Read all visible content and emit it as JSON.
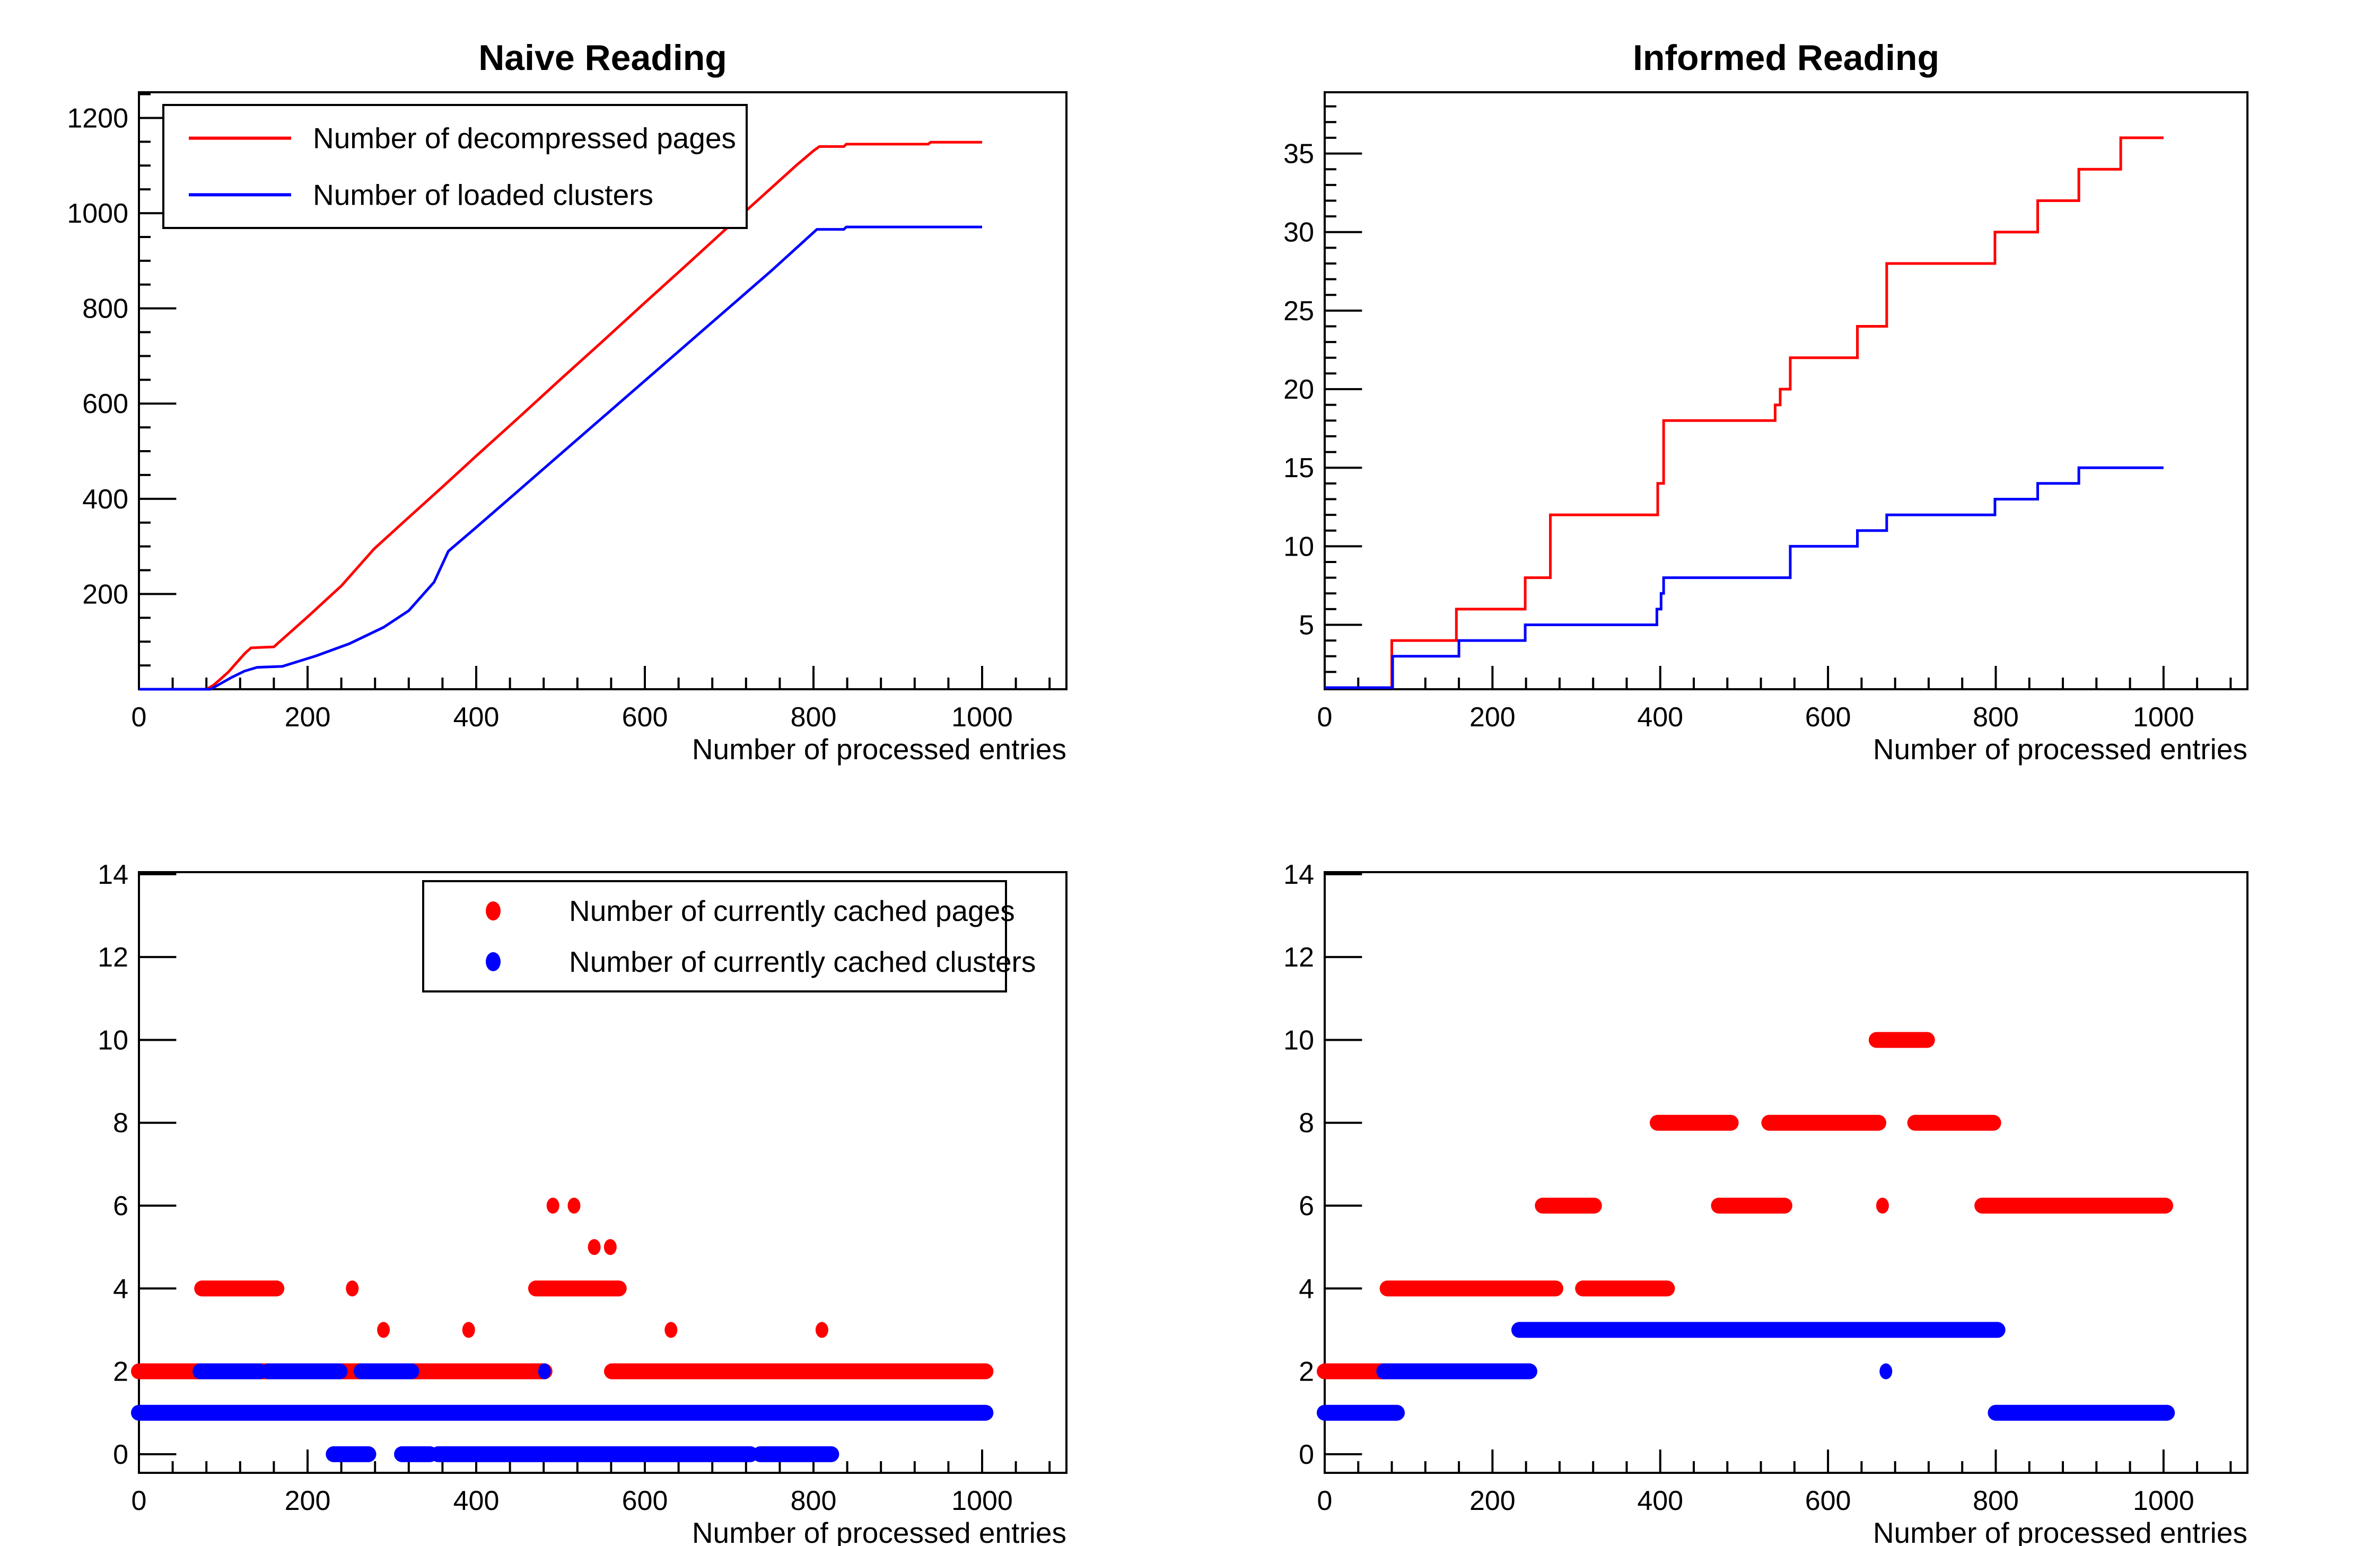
{
  "colors": {
    "red": "#ff0000",
    "blue": "#0000ff",
    "frame": "#000000",
    "background": "#ffffff"
  },
  "chart_data": {
    "type": "multi-panel",
    "panels": [
      {
        "id": "naive_cum",
        "title": "Naive Reading",
        "xlabel": "Number of processed entries",
        "xlim": [
          0,
          1100
        ],
        "ylim": [
          0,
          1254
        ],
        "grid": false,
        "xticks": {
          "major": 200,
          "minor": 40,
          "labels": [
            "0",
            "200",
            "400",
            "600",
            "800",
            "1000"
          ],
          "label_values": [
            0,
            200,
            400,
            600,
            800,
            1000
          ]
        },
        "yticks": {
          "major": 200,
          "minor": 50,
          "labels": [
            "200",
            "400",
            "600",
            "800",
            "1000",
            "1200"
          ],
          "label_values": [
            200,
            400,
            600,
            800,
            1000,
            1200
          ]
        },
        "legend": {
          "marker": "line",
          "entries": [
            {
              "label": "Number of decompressed pages",
              "color": "#ff0000"
            },
            {
              "label": "Number of loaded clusters",
              "color": "#0000ff"
            }
          ]
        },
        "series": [
          {
            "name": "decompressed-pages",
            "color": "#ff0000",
            "type": "line",
            "points": [
              [
                0,
                0
              ],
              [
                80,
                0
              ],
              [
                88,
                8
              ],
              [
                96,
                20
              ],
              [
                106,
                36
              ],
              [
                116,
                56
              ],
              [
                126,
                76
              ],
              [
                133,
                87
              ],
              [
                160,
                89
              ],
              [
                200,
                152
              ],
              [
                240,
                217
              ],
              [
                279,
                295
              ],
              [
                320,
                361
              ],
              [
                360,
                425
              ],
              [
                400,
                490
              ],
              [
                450,
                570
              ],
              [
                500,
                651
              ],
              [
                550,
                731
              ],
              [
                600,
                812
              ],
              [
                650,
                892
              ],
              [
                700,
                973
              ],
              [
                750,
                1053
              ],
              [
                780,
                1101
              ],
              [
                800,
                1131
              ],
              [
                807,
                1140
              ],
              [
                836,
                1140
              ],
              [
                839,
                1145
              ],
              [
                936,
                1145
              ],
              [
                939,
                1149
              ],
              [
                1000,
                1149
              ]
            ]
          },
          {
            "name": "loaded-clusters",
            "color": "#0000ff",
            "type": "line",
            "points": [
              [
                0,
                0
              ],
              [
                85,
                0
              ],
              [
                95,
                10
              ],
              [
                110,
                25
              ],
              [
                125,
                38
              ],
              [
                140,
                46
              ],
              [
                170,
                48
              ],
              [
                210,
                70
              ],
              [
                250,
                96
              ],
              [
                290,
                130
              ],
              [
                320,
                165
              ],
              [
                350,
                225
              ],
              [
                367,
                290
              ],
              [
                400,
                340
              ],
              [
                450,
                417
              ],
              [
                500,
                494
              ],
              [
                550,
                571
              ],
              [
                600,
                648
              ],
              [
                650,
                725
              ],
              [
                700,
                802
              ],
              [
                750,
                879
              ],
              [
                788,
                940
              ],
              [
                804,
                966
              ],
              [
                836,
                966
              ],
              [
                839,
                971
              ],
              [
                1000,
                971
              ]
            ]
          }
        ]
      },
      {
        "id": "informed_cum",
        "title": "Informed Reading",
        "xlabel": "Number of processed entries",
        "xlim": [
          0,
          1100
        ],
        "ylim": [
          0.9,
          38.9
        ],
        "grid": false,
        "xticks": {
          "major": 200,
          "minor": 40,
          "labels": [
            "0",
            "200",
            "400",
            "600",
            "800",
            "1000"
          ],
          "label_values": [
            0,
            200,
            400,
            600,
            800,
            1000
          ]
        },
        "yticks": {
          "major": 5,
          "minor": 1,
          "labels": [
            "5",
            "10",
            "15",
            "20",
            "25",
            "30",
            "35"
          ],
          "label_values": [
            5,
            10,
            15,
            20,
            25,
            30,
            35
          ]
        },
        "legend": null,
        "series": [
          {
            "name": "decompressed-pages",
            "color": "#ff0000",
            "type": "line",
            "points": [
              [
                0,
                1
              ],
              [
                80,
                1
              ],
              [
                80,
                4
              ],
              [
                157,
                4
              ],
              [
                157,
                6
              ],
              [
                239,
                6
              ],
              [
                239,
                8
              ],
              [
                269,
                8
              ],
              [
                269,
                12
              ],
              [
                397,
                12
              ],
              [
                397,
                14
              ],
              [
                404,
                14
              ],
              [
                404,
                18
              ],
              [
                537,
                18
              ],
              [
                537,
                19
              ],
              [
                543,
                19
              ],
              [
                543,
                20
              ],
              [
                555,
                20
              ],
              [
                555,
                22
              ],
              [
                635,
                22
              ],
              [
                635,
                24
              ],
              [
                670,
                24
              ],
              [
                670,
                28
              ],
              [
                799,
                28
              ],
              [
                799,
                30
              ],
              [
                850,
                30
              ],
              [
                850,
                32
              ],
              [
                899,
                32
              ],
              [
                899,
                34
              ],
              [
                949,
                34
              ],
              [
                949,
                36
              ],
              [
                1000,
                36
              ]
            ]
          },
          {
            "name": "loaded-clusters",
            "color": "#0000ff",
            "type": "line",
            "points": [
              [
                0,
                1
              ],
              [
                81,
                1
              ],
              [
                81,
                3
              ],
              [
                160,
                3
              ],
              [
                160,
                4
              ],
              [
                239,
                4
              ],
              [
                239,
                5
              ],
              [
                396,
                5
              ],
              [
                396,
                6
              ],
              [
                401,
                6
              ],
              [
                401,
                7
              ],
              [
                404,
                7
              ],
              [
                404,
                8
              ],
              [
                555,
                8
              ],
              [
                555,
                10
              ],
              [
                635,
                10
              ],
              [
                635,
                11
              ],
              [
                670,
                11
              ],
              [
                670,
                12
              ],
              [
                799,
                12
              ],
              [
                799,
                13
              ],
              [
                850,
                13
              ],
              [
                850,
                14
              ],
              [
                899,
                14
              ],
              [
                899,
                15
              ],
              [
                1000,
                15
              ]
            ]
          }
        ]
      },
      {
        "id": "naive_cache",
        "title": "",
        "xlabel": "Number of processed entries",
        "xlim": [
          0,
          1100
        ],
        "ylim": [
          -0.45,
          14.05
        ],
        "grid": false,
        "xticks": {
          "major": 200,
          "minor": 40,
          "labels": [
            "0",
            "200",
            "400",
            "600",
            "800",
            "1000"
          ],
          "label_values": [
            0,
            200,
            400,
            600,
            800,
            1000
          ]
        },
        "yticks": {
          "major": 2,
          "minor": null,
          "labels": [
            "0",
            "2",
            "4",
            "6",
            "8",
            "10",
            "12",
            "14"
          ],
          "label_values": [
            0,
            2,
            4,
            6,
            8,
            10,
            12,
            14
          ]
        },
        "legend": {
          "marker": "dot",
          "entries": [
            {
              "label": "Number of currently cached pages",
              "color": "#ff0000"
            },
            {
              "label": "Number of currently cached clusters",
              "color": "#0000ff"
            }
          ]
        },
        "series": [
          {
            "name": "cached-pages",
            "color": "#ff0000",
            "type": "scatter",
            "runs": [
              {
                "y": 2,
                "x": [
                  0,
                  481
                ]
              },
              {
                "y": 2,
                "x": [
                  561,
                  1004
                ]
              },
              {
                "y": 4,
                "x": [
                  75,
                  163
                ]
              },
              {
                "y": 4,
                "x": [
                  471,
                  569
                ]
              }
            ],
            "dots": [
              [
                253,
                4
              ],
              [
                290,
                3
              ],
              [
                391,
                3
              ],
              [
                631,
                3
              ],
              [
                810,
                3
              ],
              [
                491,
                6
              ],
              [
                516,
                6
              ],
              [
                540,
                5
              ],
              [
                559,
                5
              ]
            ]
          },
          {
            "name": "cached-clusters",
            "color": "#0000ff",
            "type": "scatter",
            "runs": [
              {
                "y": 1,
                "x": [
                  0,
                  1004
                ]
              },
              {
                "y": 2,
                "x": [
                  73,
                  143
                ]
              },
              {
                "y": 2,
                "x": [
                  154,
                  238
                ]
              },
              {
                "y": 2,
                "x": [
                  264,
                  323
                ]
              },
              {
                "y": 0,
                "x": [
                  231,
                  272
                ]
              },
              {
                "y": 0,
                "x": [
                  312,
                  345
                ]
              },
              {
                "y": 0,
                "x": [
                  355,
                  725
                ]
              },
              {
                "y": 0,
                "x": [
                  737,
                  821
                ]
              }
            ],
            "dots": [
              [
                481,
                2
              ]
            ]
          }
        ]
      },
      {
        "id": "informed_cache",
        "title": "",
        "xlabel": "Number of processed entries",
        "xlim": [
          0,
          1100
        ],
        "ylim": [
          -0.45,
          14.05
        ],
        "grid": false,
        "xticks": {
          "major": 200,
          "minor": 40,
          "labels": [
            "0",
            "200",
            "400",
            "600",
            "800",
            "1000"
          ],
          "label_values": [
            0,
            200,
            400,
            600,
            800,
            1000
          ]
        },
        "yticks": {
          "major": 2,
          "minor": null,
          "labels": [
            "0",
            "2",
            "4",
            "6",
            "8",
            "10",
            "12",
            "14"
          ],
          "label_values": [
            0,
            2,
            4,
            6,
            8,
            10,
            12,
            14
          ]
        },
        "legend": null,
        "series": [
          {
            "name": "cached-pages",
            "color": "#ff0000",
            "type": "scatter",
            "runs": [
              {
                "y": 2,
                "x": [
                  0,
                  73
                ]
              },
              {
                "y": 4,
                "x": [
                  75,
                  275
                ]
              },
              {
                "y": 4,
                "x": [
                  308,
                  408
                ]
              },
              {
                "y": 6,
                "x": [
                  260,
                  321
                ]
              },
              {
                "y": 6,
                "x": [
                  470,
                  548
                ]
              },
              {
                "y": 6,
                "x": [
                  784,
                  1002
                ]
              },
              {
                "y": 8,
                "x": [
                  397,
                  484
                ]
              },
              {
                "y": 8,
                "x": [
                  530,
                  660
                ]
              },
              {
                "y": 8,
                "x": [
                  704,
                  797
                ]
              },
              {
                "y": 10,
                "x": [
                  658,
                  718
                ]
              }
            ],
            "dots": [
              [
                665,
                6
              ]
            ]
          },
          {
            "name": "cached-clusters",
            "color": "#0000ff",
            "type": "scatter",
            "runs": [
              {
                "y": 1,
                "x": [
                  0,
                  86
                ]
              },
              {
                "y": 1,
                "x": [
                  800,
                  1004
                ]
              },
              {
                "y": 2,
                "x": [
                  71,
                  244
                ]
              },
              {
                "y": 3,
                "x": [
                  232,
                  802
                ]
              }
            ],
            "dots": [
              [
                669,
                2
              ]
            ]
          }
        ]
      }
    ]
  }
}
